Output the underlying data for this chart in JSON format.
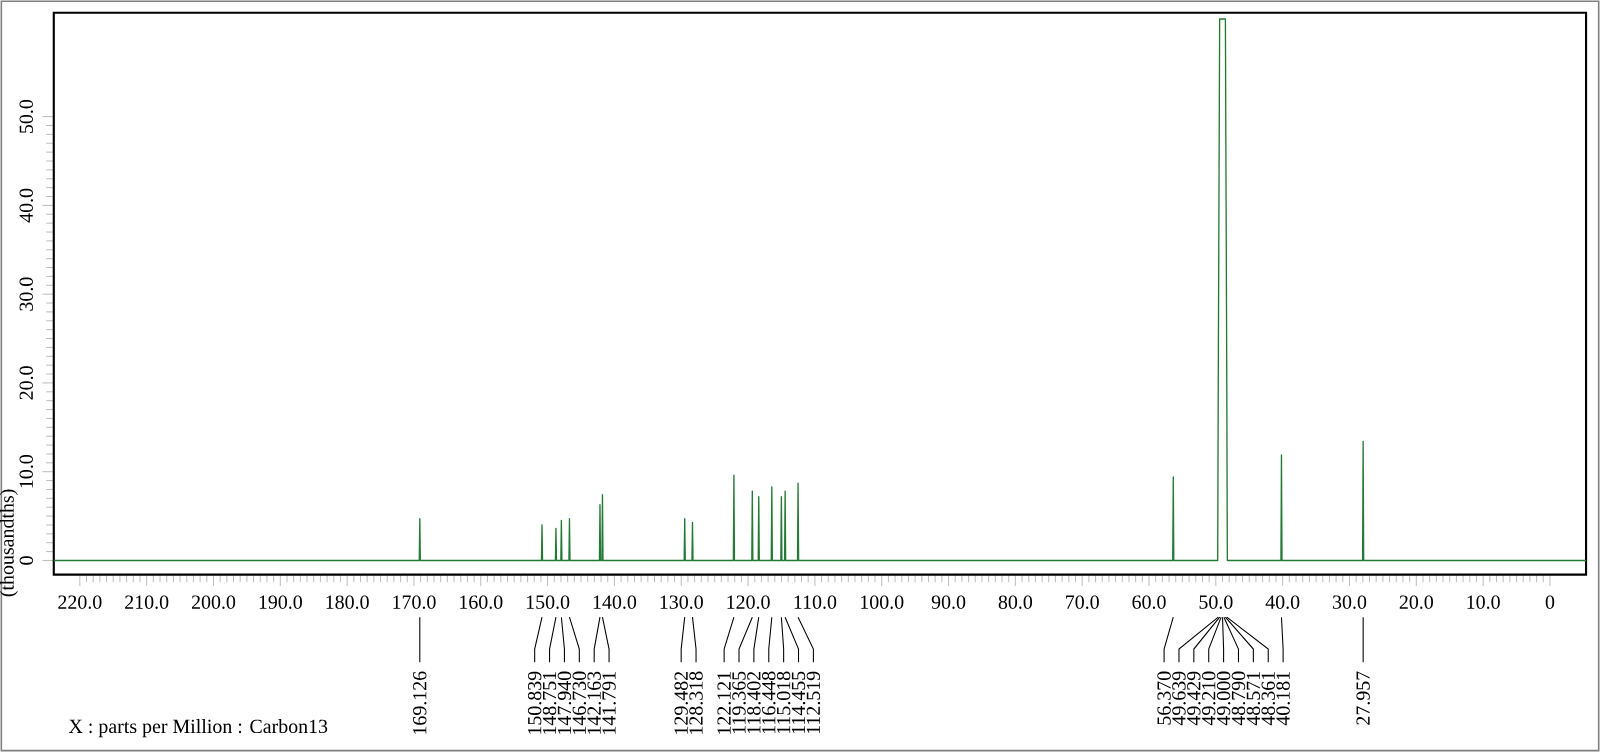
{
  "chart_data": {
    "type": "line",
    "ylabel": "(thousandths)",
    "xlim": [
      223.9,
      -5.4
    ],
    "ylim": [
      -1.6,
      61.7
    ],
    "xticks": [
      {
        "value": 220,
        "label": "220.0"
      },
      {
        "value": 210,
        "label": "210.0"
      },
      {
        "value": 200,
        "label": "200.0"
      },
      {
        "value": 190,
        "label": "190.0"
      },
      {
        "value": 180,
        "label": "180.0"
      },
      {
        "value": 170,
        "label": "170.0"
      },
      {
        "value": 160,
        "label": "160.0"
      },
      {
        "value": 150,
        "label": "150.0"
      },
      {
        "value": 140,
        "label": "140.0"
      },
      {
        "value": 130,
        "label": "130.0"
      },
      {
        "value": 120,
        "label": "120.0"
      },
      {
        "value": 110,
        "label": "110.0"
      },
      {
        "value": 100,
        "label": "100.0"
      },
      {
        "value": 90,
        "label": "90.0"
      },
      {
        "value": 80,
        "label": "80.0"
      },
      {
        "value": 70,
        "label": "70.0"
      },
      {
        "value": 60,
        "label": "60.0"
      },
      {
        "value": 50,
        "label": "50.0"
      },
      {
        "value": 40,
        "label": "40.0"
      },
      {
        "value": 30,
        "label": "30.0"
      },
      {
        "value": 20,
        "label": "20.0"
      },
      {
        "value": 10,
        "label": "10.0"
      },
      0
    ],
    "yticks": [
      0,
      {
        "value": 10,
        "label": "10.0"
      },
      {
        "value": 20,
        "label": "20.0"
      },
      {
        "value": 30,
        "label": "30.0"
      },
      {
        "value": 40,
        "label": "40.0"
      },
      {
        "value": 50,
        "label": "50.0"
      }
    ],
    "grid": false,
    "marker": "none",
    "line_style": "solid",
    "series": [
      {
        "color": "#237a35",
        "x": [
          223.9,
          169.206,
          169.126,
          169.046,
          150.919,
          150.839,
          150.759,
          148.831,
          148.751,
          148.671,
          148.02,
          147.94,
          147.86,
          146.81,
          146.73,
          146.65,
          142.243,
          142.163,
          142.083,
          141.871,
          141.791,
          141.711,
          129.562,
          129.482,
          129.402,
          128.398,
          128.318,
          128.238,
          122.201,
          122.121,
          122.041,
          119.445,
          119.365,
          119.285,
          118.482,
          118.402,
          118.322,
          116.528,
          116.448,
          116.368,
          115.098,
          115.018,
          114.938,
          114.535,
          114.455,
          114.375,
          112.599,
          112.519,
          112.439,
          56.45,
          56.37,
          56.29,
          49.719,
          49.639,
          49.429,
          49.21,
          49.0,
          48.79,
          48.571,
          48.361,
          48.281,
          40.261,
          40.181,
          40.101,
          28.037,
          27.957,
          27.877,
          -5.4
        ],
        "values": [
          0,
          0,
          4.7,
          0,
          0,
          4.0,
          0,
          0,
          3.6,
          0,
          0,
          4.5,
          0,
          0,
          4.7,
          0,
          0,
          6.3,
          0,
          0,
          7.4,
          0,
          0,
          4.7,
          0,
          0,
          4.3,
          0,
          0,
          9.6,
          0,
          0,
          7.8,
          0,
          0,
          7.2,
          0,
          0,
          8.3,
          0,
          0,
          7.2,
          0,
          0,
          7.8,
          0,
          0,
          8.7,
          0,
          0,
          9.4,
          0,
          0,
          20,
          61,
          61,
          61,
          61,
          61,
          20,
          0,
          0,
          11.9,
          0,
          0,
          13.4,
          0,
          0
        ]
      }
    ],
    "annotations": [
      {
        "text": "169.126",
        "x": 169.126
      },
      {
        "text": "150.839",
        "x": 150.839
      },
      {
        "text": "148.751",
        "x": 148.751
      },
      {
        "text": "147.940",
        "x": 147.94
      },
      {
        "text": "146.730",
        "x": 146.73
      },
      {
        "text": "142.163",
        "x": 142.163
      },
      {
        "text": "141.791",
        "x": 141.791
      },
      {
        "text": "129.482",
        "x": 129.482
      },
      {
        "text": "128.318",
        "x": 128.318
      },
      {
        "text": "122.121",
        "x": 122.121
      },
      {
        "text": "119.365",
        "x": 119.365
      },
      {
        "text": "118.402",
        "x": 118.402
      },
      {
        "text": "116.448",
        "x": 116.448
      },
      {
        "text": "115.018",
        "x": 115.018
      },
      {
        "text": "114.455",
        "x": 114.455
      },
      {
        "text": "112.519",
        "x": 112.519
      },
      {
        "text": "56.370",
        "x": 56.37
      },
      {
        "text": "49.639",
        "x": 49.639
      },
      {
        "text": "49.429",
        "x": 49.429
      },
      {
        "text": "49.210",
        "x": 49.21
      },
      {
        "text": "49.000",
        "x": 49.0
      },
      {
        "text": "48.790",
        "x": 48.79
      },
      {
        "text": "48.571",
        "x": 48.571
      },
      {
        "text": "48.361",
        "x": 48.361
      },
      {
        "text": "40.181",
        "x": 40.181
      },
      {
        "text": "27.957",
        "x": 27.957
      },
      "X : parts per Million : Carbon13"
    ]
  }
}
